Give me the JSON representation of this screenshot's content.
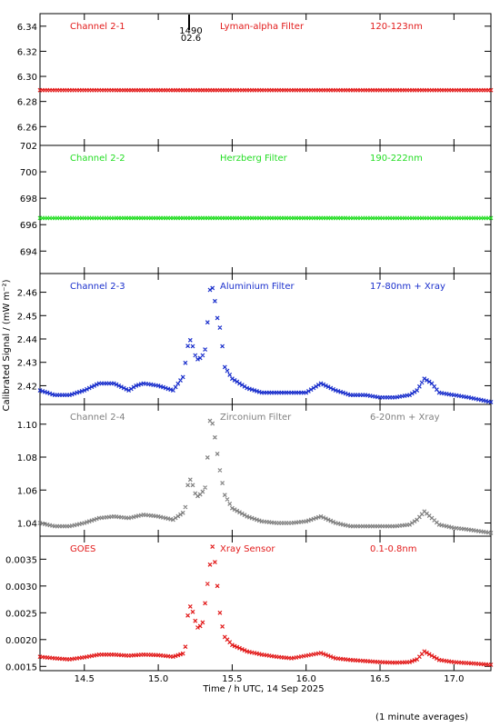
{
  "figure": {
    "ylabel": "Calibrated Signal / (mW m⁻²)",
    "xlabel": "Time / h UTC, 14 Sep 2025",
    "footnote": "(1 minute averages)",
    "marker_text": "1490",
    "marker_subtext": "02.6"
  },
  "chart_data": [
    {
      "type": "scatter",
      "panel_id": "ch2-1",
      "channel_label": "Channel 2-1",
      "filter_label": "Lyman-alpha Filter",
      "band_label": "120-123nm",
      "color": "#e21a1a",
      "ylim": [
        6.245,
        6.35
      ],
      "yticks": [
        6.26,
        6.28,
        6.3,
        6.32,
        6.34
      ],
      "ytick_labels": [
        "6.26",
        "6.28",
        "6.30",
        "6.32",
        "6.34"
      ],
      "xlim": [
        14.2,
        17.25
      ],
      "xticks": [
        14.5,
        15.0,
        15.5,
        16.0,
        16.5,
        17.0
      ],
      "xtick_labels": [
        "14.5",
        "15.0",
        "15.5",
        "16.0",
        "16.5",
        "17.0"
      ],
      "series": [
        {
          "x": [
            14.2,
            17.25
          ],
          "y": [
            6.289,
            6.289
          ]
        }
      ]
    },
    {
      "type": "scatter",
      "panel_id": "ch2-2",
      "channel_label": "Channel 2-2",
      "filter_label": "Herzberg Filter",
      "band_label": "190-222nm",
      "color": "#22dd22",
      "ylim": [
        692.3,
        702.0
      ],
      "yticks": [
        694,
        696,
        698,
        700,
        702
      ],
      "ytick_labels": [
        "694",
        "696",
        "698",
        "700",
        "702"
      ],
      "xlim": [
        14.2,
        17.25
      ],
      "xticks": [
        14.5,
        15.0,
        15.5,
        16.0,
        16.5,
        17.0
      ],
      "xtick_labels": [
        "14.5",
        "15.0",
        "15.5",
        "16.0",
        "16.5",
        "17.0"
      ],
      "series": [
        {
          "x": [
            14.2,
            17.25
          ],
          "y": [
            696.5,
            696.5
          ]
        }
      ]
    },
    {
      "type": "scatter",
      "panel_id": "ch2-3",
      "channel_label": "Channel 2-3",
      "filter_label": "Aluminium Filter",
      "band_label": "17-80nm + Xray",
      "color": "#1a2fcc",
      "ylim": [
        2.412,
        2.468
      ],
      "yticks": [
        2.42,
        2.43,
        2.44,
        2.45,
        2.46
      ],
      "ytick_labels": [
        "2.42",
        "2.43",
        "2.44",
        "2.45",
        "2.46"
      ],
      "xlim": [
        14.2,
        17.25
      ],
      "xticks": [
        14.5,
        15.0,
        15.5,
        16.0,
        16.5,
        17.0
      ],
      "xtick_labels": [
        "14.5",
        "15.0",
        "15.5",
        "16.0",
        "16.5",
        "17.0"
      ],
      "series": [
        {
          "x": [
            14.2,
            14.3,
            14.4,
            14.5,
            14.6,
            14.7,
            14.8,
            14.85,
            14.9,
            15.0,
            15.1,
            15.17,
            15.2,
            15.22,
            15.25,
            15.27,
            15.3,
            15.32,
            15.35,
            15.37,
            15.4,
            15.42,
            15.45,
            15.5,
            15.6,
            15.7,
            15.8,
            15.9,
            16.0,
            16.1,
            16.2,
            16.3,
            16.4,
            16.5,
            16.6,
            16.7,
            16.75,
            16.8,
            16.85,
            16.9,
            17.0,
            17.1,
            17.25
          ],
          "y": [
            2.418,
            2.416,
            2.416,
            2.418,
            2.421,
            2.421,
            2.418,
            2.42,
            2.421,
            2.42,
            2.418,
            2.424,
            2.437,
            2.44,
            2.433,
            2.431,
            2.433,
            2.436,
            2.461,
            2.462,
            2.449,
            2.444,
            2.428,
            2.423,
            2.419,
            2.417,
            2.417,
            2.417,
            2.417,
            2.421,
            2.418,
            2.416,
            2.416,
            2.415,
            2.415,
            2.416,
            2.418,
            2.423,
            2.421,
            2.417,
            2.416,
            2.415,
            2.413
          ]
        }
      ]
    },
    {
      "type": "scatter",
      "panel_id": "ch2-4",
      "channel_label": "Channel 2-4",
      "filter_label": "Zirconium Filter",
      "band_label": "6-20nm + Xray",
      "color": "#808080",
      "ylim": [
        1.032,
        1.112
      ],
      "yticks": [
        1.04,
        1.06,
        1.08,
        1.1
      ],
      "ytick_labels": [
        "1.04",
        "1.06",
        "1.08",
        "1.10"
      ],
      "xlim": [
        14.2,
        17.25
      ],
      "xticks": [
        14.5,
        15.0,
        15.5,
        16.0,
        16.5,
        17.0
      ],
      "xtick_labels": [
        "14.5",
        "15.0",
        "15.5",
        "16.0",
        "16.5",
        "17.0"
      ],
      "series": [
        {
          "x": [
            14.2,
            14.3,
            14.4,
            14.5,
            14.6,
            14.7,
            14.8,
            14.9,
            15.0,
            15.1,
            15.18,
            15.2,
            15.22,
            15.25,
            15.27,
            15.3,
            15.32,
            15.35,
            15.37,
            15.4,
            15.42,
            15.45,
            15.5,
            15.6,
            15.7,
            15.8,
            15.9,
            16.0,
            16.1,
            16.2,
            16.3,
            16.4,
            16.5,
            16.6,
            16.7,
            16.75,
            16.8,
            16.85,
            16.9,
            17.0,
            17.1,
            17.25
          ],
          "y": [
            1.04,
            1.038,
            1.038,
            1.04,
            1.043,
            1.044,
            1.043,
            1.045,
            1.044,
            1.042,
            1.047,
            1.063,
            1.067,
            1.058,
            1.056,
            1.059,
            1.062,
            1.102,
            1.1,
            1.082,
            1.07,
            1.057,
            1.049,
            1.044,
            1.041,
            1.04,
            1.04,
            1.041,
            1.044,
            1.04,
            1.038,
            1.038,
            1.038,
            1.038,
            1.039,
            1.042,
            1.047,
            1.043,
            1.039,
            1.037,
            1.036,
            1.034
          ]
        }
      ]
    },
    {
      "type": "scatter",
      "panel_id": "goes",
      "channel_label": "GOES",
      "filter_label": "Xray Sensor",
      "band_label": "0.1-0.8nm",
      "color": "#e21a1a",
      "ylim": [
        0.00142,
        0.00393
      ],
      "yticks": [
        0.0015,
        0.002,
        0.0025,
        0.003,
        0.0035
      ],
      "ytick_labels": [
        "0.0015",
        "0.0020",
        "0.0025",
        "0.0030",
        "0.0035"
      ],
      "xlim": [
        14.2,
        17.25
      ],
      "xticks": [
        14.5,
        15.0,
        15.5,
        16.0,
        16.5,
        17.0
      ],
      "xtick_labels": [
        "14.5",
        "15.0",
        "15.5",
        "16.0",
        "16.5",
        "17.0"
      ],
      "series": [
        {
          "x": [
            14.2,
            14.3,
            14.4,
            14.5,
            14.6,
            14.7,
            14.8,
            14.9,
            15.0,
            15.1,
            15.18,
            15.2,
            15.22,
            15.25,
            15.27,
            15.3,
            15.32,
            15.35,
            15.37,
            15.4,
            15.42,
            15.45,
            15.5,
            15.6,
            15.7,
            15.8,
            15.9,
            16.0,
            16.1,
            16.2,
            16.3,
            16.4,
            16.5,
            16.6,
            16.7,
            16.75,
            16.8,
            16.85,
            16.9,
            17.0,
            17.1,
            17.25
          ],
          "y": [
            0.00168,
            0.00165,
            0.00163,
            0.00167,
            0.00172,
            0.00172,
            0.0017,
            0.00172,
            0.00171,
            0.00168,
            0.00175,
            0.00245,
            0.00265,
            0.00235,
            0.0022,
            0.00232,
            0.00275,
            0.0034,
            0.0038,
            0.003,
            0.0024,
            0.00205,
            0.0019,
            0.00178,
            0.00172,
            0.00168,
            0.00165,
            0.0017,
            0.00175,
            0.00165,
            0.00162,
            0.0016,
            0.00158,
            0.00157,
            0.00158,
            0.00163,
            0.00178,
            0.0017,
            0.00162,
            0.00158,
            0.00156,
            0.00153
          ]
        }
      ]
    }
  ]
}
